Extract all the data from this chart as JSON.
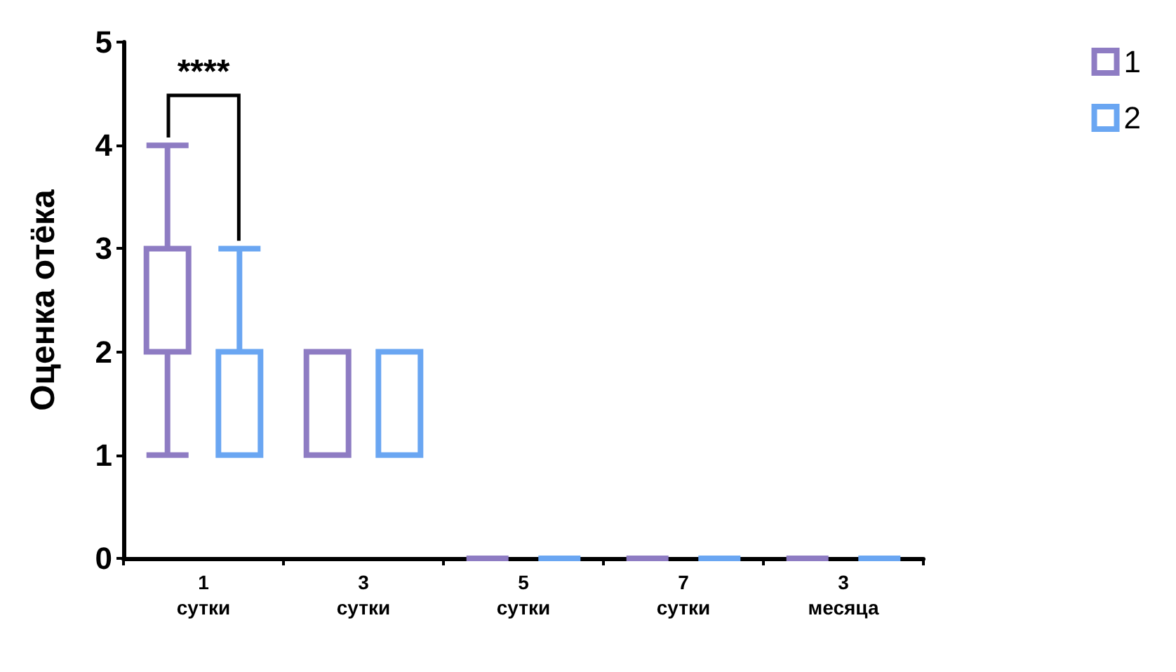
{
  "chart_data": {
    "type": "box",
    "ylabel": "Оценка отёка",
    "categories": [
      "1\nсутки",
      "3\nсутки",
      "5\nсутки",
      "7\nсутки",
      "3\nмесяца"
    ],
    "series": [
      {
        "name": "1",
        "color": "#8e7cc3",
        "boxes": [
          {
            "low": 1,
            "q1": 2,
            "median": 3,
            "q3": 3,
            "high": 4
          },
          {
            "low": 1,
            "q1": 1,
            "median": 2,
            "q3": 2,
            "high": 2
          },
          {
            "low": 0,
            "q1": 0,
            "median": 0,
            "q3": 0,
            "high": 0
          },
          {
            "low": 0,
            "q1": 0,
            "median": 0,
            "q3": 0,
            "high": 0
          },
          {
            "low": 0,
            "q1": 0,
            "median": 0,
            "q3": 0,
            "high": 0
          }
        ]
      },
      {
        "name": "2",
        "color": "#6aa6f2",
        "boxes": [
          {
            "low": 1,
            "q1": 1,
            "median": 2,
            "q3": 2,
            "high": 3
          },
          {
            "low": 1,
            "q1": 1,
            "median": 1,
            "q3": 2,
            "high": 2
          },
          {
            "low": 0,
            "q1": 0,
            "median": 0,
            "q3": 0,
            "high": 0
          },
          {
            "low": 0,
            "q1": 0,
            "median": 0,
            "q3": 0,
            "high": 0
          },
          {
            "low": 0,
            "q1": 0,
            "median": 0,
            "q3": 0,
            "high": 0
          }
        ]
      }
    ],
    "ylim": [
      0,
      5
    ],
    "yticks": [
      0,
      1,
      2,
      3,
      4,
      5
    ],
    "grid": false,
    "legend": "top right",
    "annotations": [
      "****"
    ]
  }
}
